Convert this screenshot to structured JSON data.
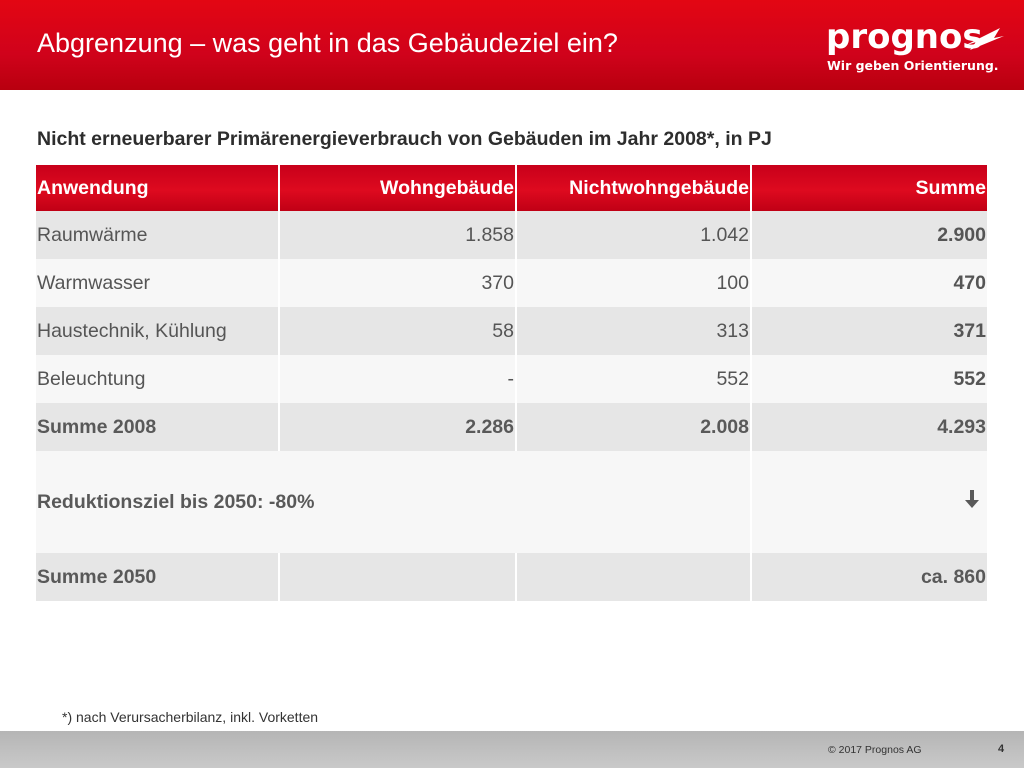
{
  "header": {
    "title": "Abgrenzung – was geht in das Gebäudeziel ein?",
    "logo_word": "prognos",
    "logo_tagline": "Wir geben Orientierung.",
    "color": "#e30613"
  },
  "subtitle": "Nicht erneuerbarer Primärenergieverbrauch von Gebäuden im Jahr 2008*, in PJ",
  "table": {
    "columns": [
      "Anwendung",
      "Wohngebäude",
      "Nichtwohngebäude",
      "Summe"
    ],
    "rows": [
      {
        "label": "Raumwärme",
        "wohn": "1.858",
        "nichtwohn": "1.042",
        "summe": "2.900"
      },
      {
        "label": "Warmwasser",
        "wohn": "370",
        "nichtwohn": "100",
        "summe": "470"
      },
      {
        "label": "Haustechnik, Kühlung",
        "wohn": "58",
        "nichtwohn": "313",
        "summe": "371"
      },
      {
        "label": "Beleuchtung",
        "wohn": "-",
        "nichtwohn": "552",
        "summe": "552"
      }
    ],
    "total_2008": {
      "label": "Summe 2008",
      "wohn": "2.286",
      "nichtwohn": "2.008",
      "summe": "4.293"
    },
    "target": {
      "label": "Reduktionsziel bis 2050: -80%",
      "icon": "arrow-down-icon"
    },
    "total_2050": {
      "label": "Summe 2050",
      "summe": "ca. 860"
    }
  },
  "footnote": "*) nach Verursacherbilanz, inkl. Vorketten",
  "footer": {
    "copyright": "© 2017 Prognos AG",
    "page": "4"
  }
}
